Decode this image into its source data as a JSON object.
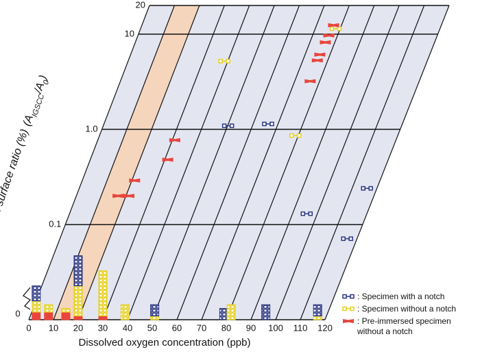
{
  "chart_data": {
    "type": "skewed-scatter",
    "y_label": "Fractured surface ratio (%)",
    "y_label_formula": [
      "(A",
      "IGSCC",
      "/A",
      "0",
      ")"
    ],
    "x_label": "Dissolved oxygen concentration (ppb)",
    "xlim": [
      0,
      120
    ],
    "xticks": [
      0,
      10,
      20,
      30,
      40,
      50,
      60,
      70,
      80,
      90,
      100,
      110,
      120
    ],
    "ylim": [
      0.017,
      20
    ],
    "yscale": "log",
    "yticks": [
      {
        "value": 0.1,
        "label": "0.1"
      },
      {
        "value": 1,
        "label": "1.0"
      },
      10,
      20
    ],
    "zero_tick": 0,
    "band": [
      10,
      20
    ],
    "band_color": "#f5d5bc",
    "zero_x": [
      3,
      8,
      15,
      20,
      30,
      39,
      51,
      79,
      82,
      96,
      117
    ],
    "series": [
      {
        "name": ": Specimen with a notch",
        "color": "#2a3580",
        "marker": "dumbbell",
        "x": [
          50.2,
          66.0,
          116,
          95.7,
          116
        ],
        "y": [
          1.09,
          1.14,
          0.24,
          0.13,
          0.071
        ],
        "zero_counts": [
          4,
          0,
          0,
          8,
          0,
          0,
          3,
          3,
          0,
          4,
          3
        ]
      },
      {
        "name": ": Specimen without a notch",
        "color": "#e6cf1c",
        "marker": "dumbbell",
        "x": [
          78.2,
          38.6,
          78.8
        ],
        "y": [
          11.4,
          5.2,
          0.86
        ],
        "zero_counts": [
          3,
          2,
          1,
          8,
          12,
          4,
          1,
          0,
          4,
          0,
          1
        ]
      },
      {
        "name": ": Pre-immersed specimen without a notch",
        "color": "#e8453c",
        "marker": "bowtie",
        "x": [
          76.8,
          76.5,
          76.2,
          75.9,
          75.8,
          76.2,
          31.0,
          31.2,
          21.1,
          21.2,
          16.8
        ],
        "y": [
          12.4,
          9.7,
          8.2,
          6.1,
          5.3,
          3.2,
          0.77,
          0.48,
          0.29,
          0.2,
          0.2
        ],
        "zero_counts": [
          2,
          2,
          2,
          1,
          1,
          0,
          0,
          0,
          0,
          0,
          0
        ]
      }
    ]
  }
}
